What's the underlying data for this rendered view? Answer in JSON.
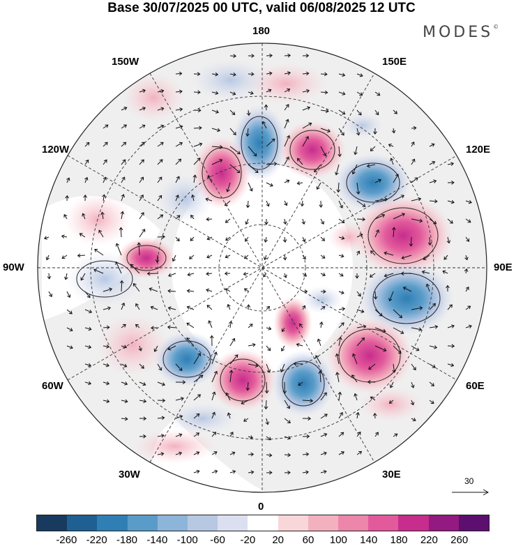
{
  "title": "Base 30/07/2025 00 UTC, valid 06/08/2025 12 UTC",
  "brand": "MODES",
  "brand_mark": "©",
  "map": {
    "projection": "north-polar-stereographic",
    "longitude_labels": {
      "top": "180",
      "bottom": "0",
      "left": "90W",
      "right": "90E",
      "upper_left_1": "150W",
      "upper_left_2": "120W",
      "upper_right_1": "150E",
      "upper_right_2": "120E",
      "lower_left_1": "60W",
      "lower_left_2": "30W",
      "lower_right_1": "60E",
      "lower_right_2": "30E"
    },
    "wind_reference": {
      "label": "30",
      "icon": "arrow-right-icon"
    }
  },
  "colorbar": {
    "colors": [
      "#173a5e",
      "#1f5f92",
      "#2f7fb5",
      "#5a9cc9",
      "#8db5da",
      "#b7c8e3",
      "#dcdfef",
      "#ffffff",
      "#f9d6da",
      "#f3b1bf",
      "#ec86ab",
      "#e25a9b",
      "#c72d8c",
      "#921a80",
      "#5c0f6e"
    ],
    "tick_labels": [
      "-260",
      "-220",
      "-180",
      "-140",
      "-100",
      "-60",
      "-20",
      "20",
      "60",
      "100",
      "140",
      "180",
      "220",
      "260"
    ]
  }
}
